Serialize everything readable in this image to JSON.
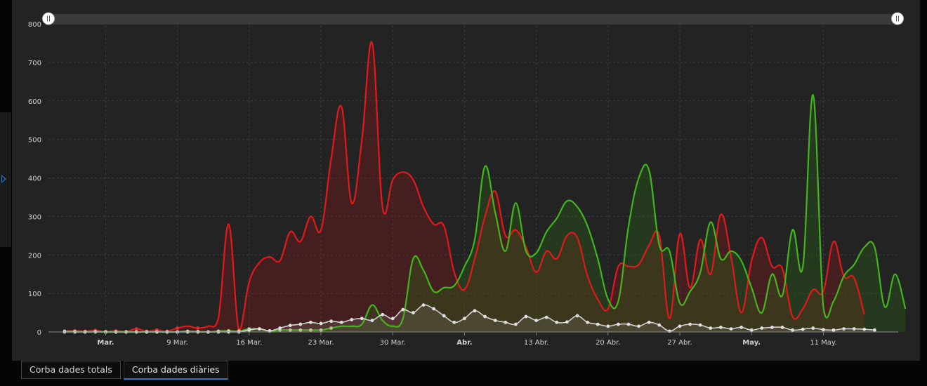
{
  "tabs": [
    {
      "label": "Corba dades totals",
      "active": false
    },
    {
      "label": "Corba dades diàries",
      "active": true
    }
  ],
  "colors": {
    "red": "#e0191c",
    "green": "#43b51c",
    "white": "#d0d0d0",
    "accent": "#2b78c2"
  },
  "chart_data": {
    "type": "area",
    "title": "",
    "ylim": [
      0,
      800
    ],
    "yticks": [
      0,
      100,
      200,
      300,
      400,
      500,
      600,
      700,
      800
    ],
    "x_start_day": 1,
    "x_end_day": 78,
    "xticks": [
      {
        "day": 5,
        "label": "Mar.",
        "bold": true
      },
      {
        "day": 12,
        "label": "9 Mar.",
        "bold": false
      },
      {
        "day": 19,
        "label": "16 Mar.",
        "bold": false
      },
      {
        "day": 26,
        "label": "23 Mar.",
        "bold": false
      },
      {
        "day": 33,
        "label": "30 Mar.",
        "bold": false
      },
      {
        "day": 40,
        "label": "Abr.",
        "bold": true
      },
      {
        "day": 47,
        "label": "13 Abr.",
        "bold": false
      },
      {
        "day": 54,
        "label": "20 Abr.",
        "bold": false
      },
      {
        "day": 61,
        "label": "27 Abr.",
        "bold": false
      },
      {
        "day": 68,
        "label": "May.",
        "bold": true
      },
      {
        "day": 75,
        "label": "11 May.",
        "bold": false
      }
    ],
    "grid": true,
    "series": [
      {
        "color": "red",
        "values": [
          2,
          3,
          2,
          4,
          1,
          3,
          1,
          8,
          2,
          5,
          2,
          10,
          15,
          10,
          15,
          35,
          280,
          5,
          130,
          180,
          195,
          185,
          260,
          235,
          300,
          265,
          450,
          585,
          335,
          500,
          750,
          325,
          395,
          415,
          395,
          325,
          280,
          275,
          155,
          110,
          190,
          300,
          365,
          250,
          265,
          220,
          155,
          210,
          190,
          250,
          245,
          145,
          85,
          60,
          170,
          170,
          175,
          225,
          250,
          35,
          255,
          115,
          240,
          150,
          305,
          195,
          50,
          185,
          245,
          170,
          165,
          40,
          60,
          110,
          105,
          235,
          145,
          140,
          45
        ],
        "hidden_points": false
      },
      {
        "color": "green",
        "values": [
          2,
          1,
          0,
          1,
          0,
          0,
          0,
          0,
          0,
          0,
          0,
          0,
          2,
          1,
          0,
          2,
          3,
          2,
          8,
          8,
          2,
          5,
          5,
          5,
          5,
          5,
          10,
          15,
          15,
          20,
          70,
          30,
          15,
          35,
          190,
          160,
          105,
          115,
          120,
          170,
          240,
          430,
          310,
          210,
          335,
          210,
          205,
          260,
          295,
          340,
          325,
          275,
          190,
          85,
          80,
          275,
          400,
          420,
          225,
          210,
          75,
          105,
          155,
          285,
          190,
          210,
          185,
          115,
          50,
          150,
          95,
          265,
          170,
          615,
          65,
          80,
          145,
          175,
          220,
          220,
          65,
          150,
          60
        ]
      },
      {
        "color": "white",
        "values": [
          0,
          0,
          0,
          0,
          0,
          0,
          0,
          0,
          0,
          0,
          0,
          0,
          0,
          0,
          0,
          0,
          0,
          0,
          5,
          8,
          3,
          10,
          17,
          20,
          25,
          22,
          28,
          25,
          32,
          35,
          30,
          45,
          35,
          58,
          50,
          70,
          60,
          42,
          25,
          35,
          55,
          40,
          30,
          25,
          20,
          40,
          30,
          38,
          25,
          26,
          42,
          25,
          20,
          15,
          20,
          20,
          15,
          25,
          18,
          2,
          15,
          20,
          18,
          10,
          12,
          8,
          12,
          5,
          10,
          12,
          12,
          5,
          7,
          10,
          6,
          5,
          8,
          8,
          7,
          5
        ]
      }
    ]
  }
}
